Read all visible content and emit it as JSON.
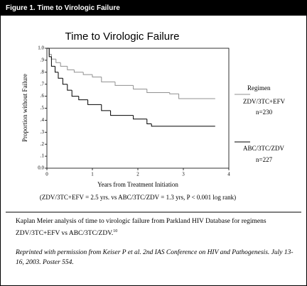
{
  "header": {
    "title": "Figure 1. Time to Virologic Failure"
  },
  "chart_data": {
    "type": "step",
    "title": "Time to Virologic Failure",
    "x_label": "Years from Treatment Initiation",
    "y_label": "Proportion without Failure",
    "annotation": "(ZDV/3TC+EFV = 2.5 yrs. vs ABC/3TC/ZDV = 1.3 yrs, P < 0.001 log rank)",
    "legend_title": "Regimen",
    "xlim": [
      0,
      4
    ],
    "xticks": [
      0,
      1,
      2,
      3,
      4
    ],
    "ylim": [
      0,
      1
    ],
    "yticks": [
      {
        "value": 0,
        "label": "0.0"
      },
      {
        "value": 0.1,
        "label": ".1"
      },
      {
        "value": 0.2,
        "label": ".2"
      },
      {
        "value": 0.3,
        "label": ".3"
      },
      {
        "value": 0.4,
        "label": ".4"
      },
      {
        "value": 0.5,
        "label": ".5"
      },
      {
        "value": 0.6,
        "label": ".6"
      },
      {
        "value": 0.7,
        "label": ".7"
      },
      {
        "value": 0.8,
        "label": ".8"
      },
      {
        "value": 0.9,
        "label": ".9"
      },
      {
        "value": 1,
        "label": "1.0"
      }
    ],
    "series": [
      {
        "name": "ZDV/3TC+EFV",
        "n": "n=230",
        "color": "#909090",
        "x": [
          0,
          0.05,
          0.1,
          0.2,
          0.3,
          0.45,
          0.6,
          0.8,
          1.0,
          1.2,
          1.5,
          1.9,
          2.2,
          2.7,
          2.9,
          3.7
        ],
        "values": [
          1,
          0.95,
          0.91,
          0.88,
          0.85,
          0.82,
          0.8,
          0.78,
          0.76,
          0.72,
          0.69,
          0.66,
          0.63,
          0.62,
          0.58,
          0.58
        ]
      },
      {
        "name": "ABC/3TC/ZDV",
        "n": "n=227",
        "color": "#000000",
        "x": [
          0,
          0.05,
          0.1,
          0.18,
          0.25,
          0.35,
          0.45,
          0.55,
          0.7,
          0.9,
          1.2,
          1.4,
          1.9,
          2.2,
          2.3,
          3.7
        ],
        "values": [
          1,
          0.93,
          0.85,
          0.8,
          0.75,
          0.7,
          0.65,
          0.6,
          0.57,
          0.53,
          0.48,
          0.44,
          0.41,
          0.37,
          0.35,
          0.35
        ]
      }
    ]
  },
  "caption": {
    "text": "Kaplan Meier analysis of time to virologic failure from Parkland HIV Database for regimens ZDV/3TC+EFV vs ABC/3TC/ZDV.",
    "reference": "10"
  },
  "credit": "Reprinted with permission from Keiser P et al. 2nd IAS Conference on HIV and Pathogenesis. July 13-16, 2003. Poster 554."
}
